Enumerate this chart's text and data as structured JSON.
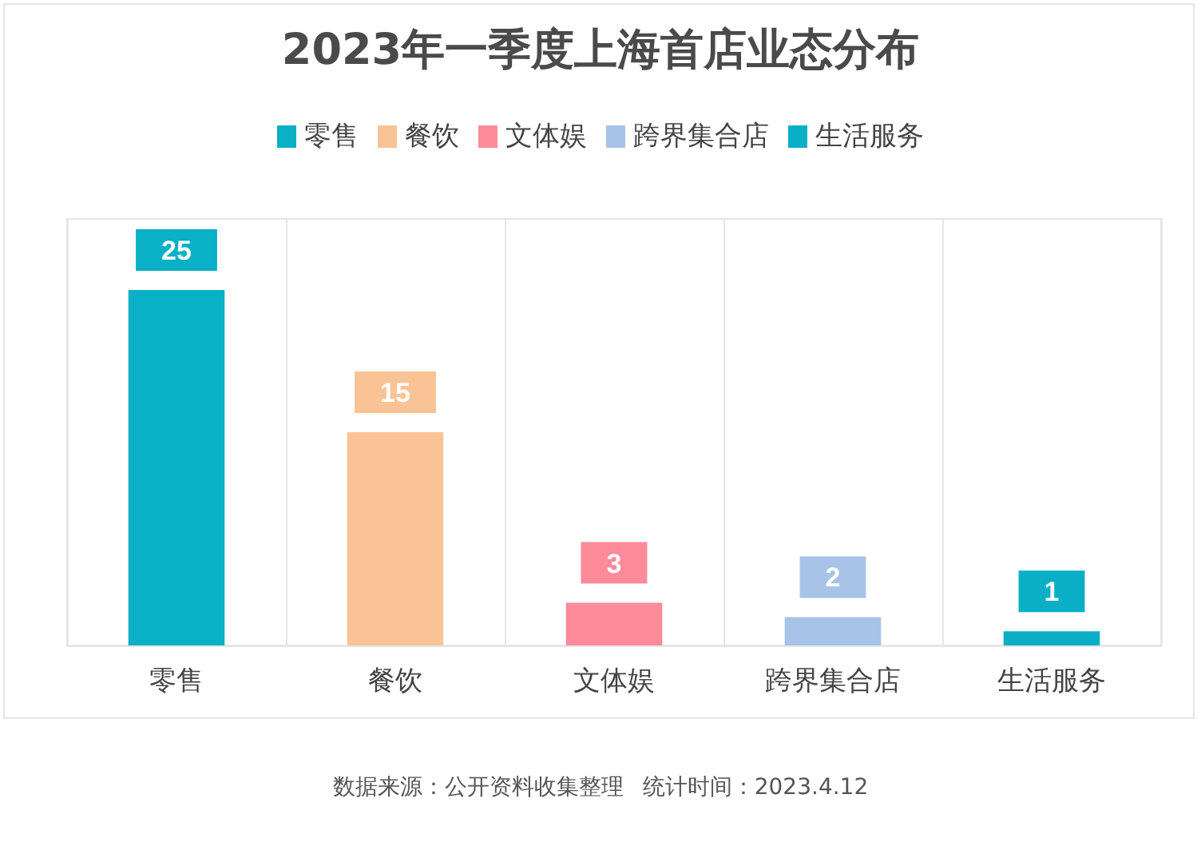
{
  "chart_data": {
    "type": "bar",
    "title": "2023年一季度上海首店业态分布",
    "categories": [
      "零售",
      "餐饮",
      "文体娱",
      "跨界集合店",
      "生活服务"
    ],
    "series": [
      {
        "name": "零售",
        "color": "#0ab0c5",
        "values": [
          25,
          null,
          null,
          null,
          null
        ]
      },
      {
        "name": "餐饮",
        "color": "#f9c396",
        "values": [
          null,
          15,
          null,
          null,
          null
        ]
      },
      {
        "name": "文体娱",
        "color": "#fd8b9a",
        "values": [
          null,
          null,
          3,
          null,
          null
        ]
      },
      {
        "name": "跨界集合店",
        "color": "#a7c3e8",
        "values": [
          null,
          null,
          null,
          2,
          null
        ]
      },
      {
        "name": "生活服务",
        "color": "#0aafc6",
        "values": [
          null,
          null,
          null,
          null,
          1
        ]
      }
    ],
    "data_labels": true,
    "grid": "x",
    "legend": "top",
    "annotations": [
      "数据来源：公开资料收集整理",
      "统计时间：2023.4.12"
    ]
  }
}
